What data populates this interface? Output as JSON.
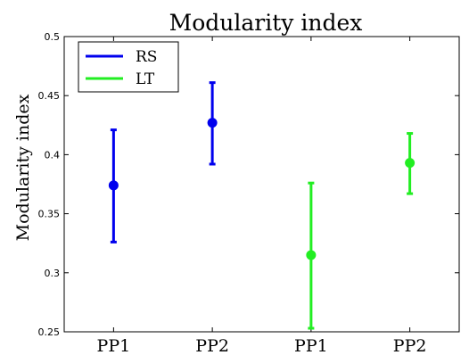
{
  "chart_data": {
    "type": "scatter",
    "title": "Modularity index",
    "xlabel": "",
    "ylabel": "Modularity index",
    "ylim": [
      0.25,
      0.5
    ],
    "yticks": [
      "0.25",
      "0.3",
      "0.35",
      "0.4",
      "0.45",
      "0.5"
    ],
    "categories": [
      "PP1",
      "PP2",
      "PP1",
      "PP2"
    ],
    "grid": false,
    "legend_position": "top-left",
    "series": [
      {
        "name": "RS",
        "color": "#0000ee",
        "points": [
          {
            "category_index": 0,
            "value": 0.374,
            "lower": 0.326,
            "upper": 0.421
          },
          {
            "category_index": 1,
            "value": 0.427,
            "lower": 0.392,
            "upper": 0.461
          }
        ]
      },
      {
        "name": "LT",
        "color": "#22ee22",
        "points": [
          {
            "category_index": 2,
            "value": 0.315,
            "lower": 0.253,
            "upper": 0.376
          },
          {
            "category_index": 3,
            "value": 0.393,
            "lower": 0.367,
            "upper": 0.418
          }
        ]
      }
    ]
  }
}
